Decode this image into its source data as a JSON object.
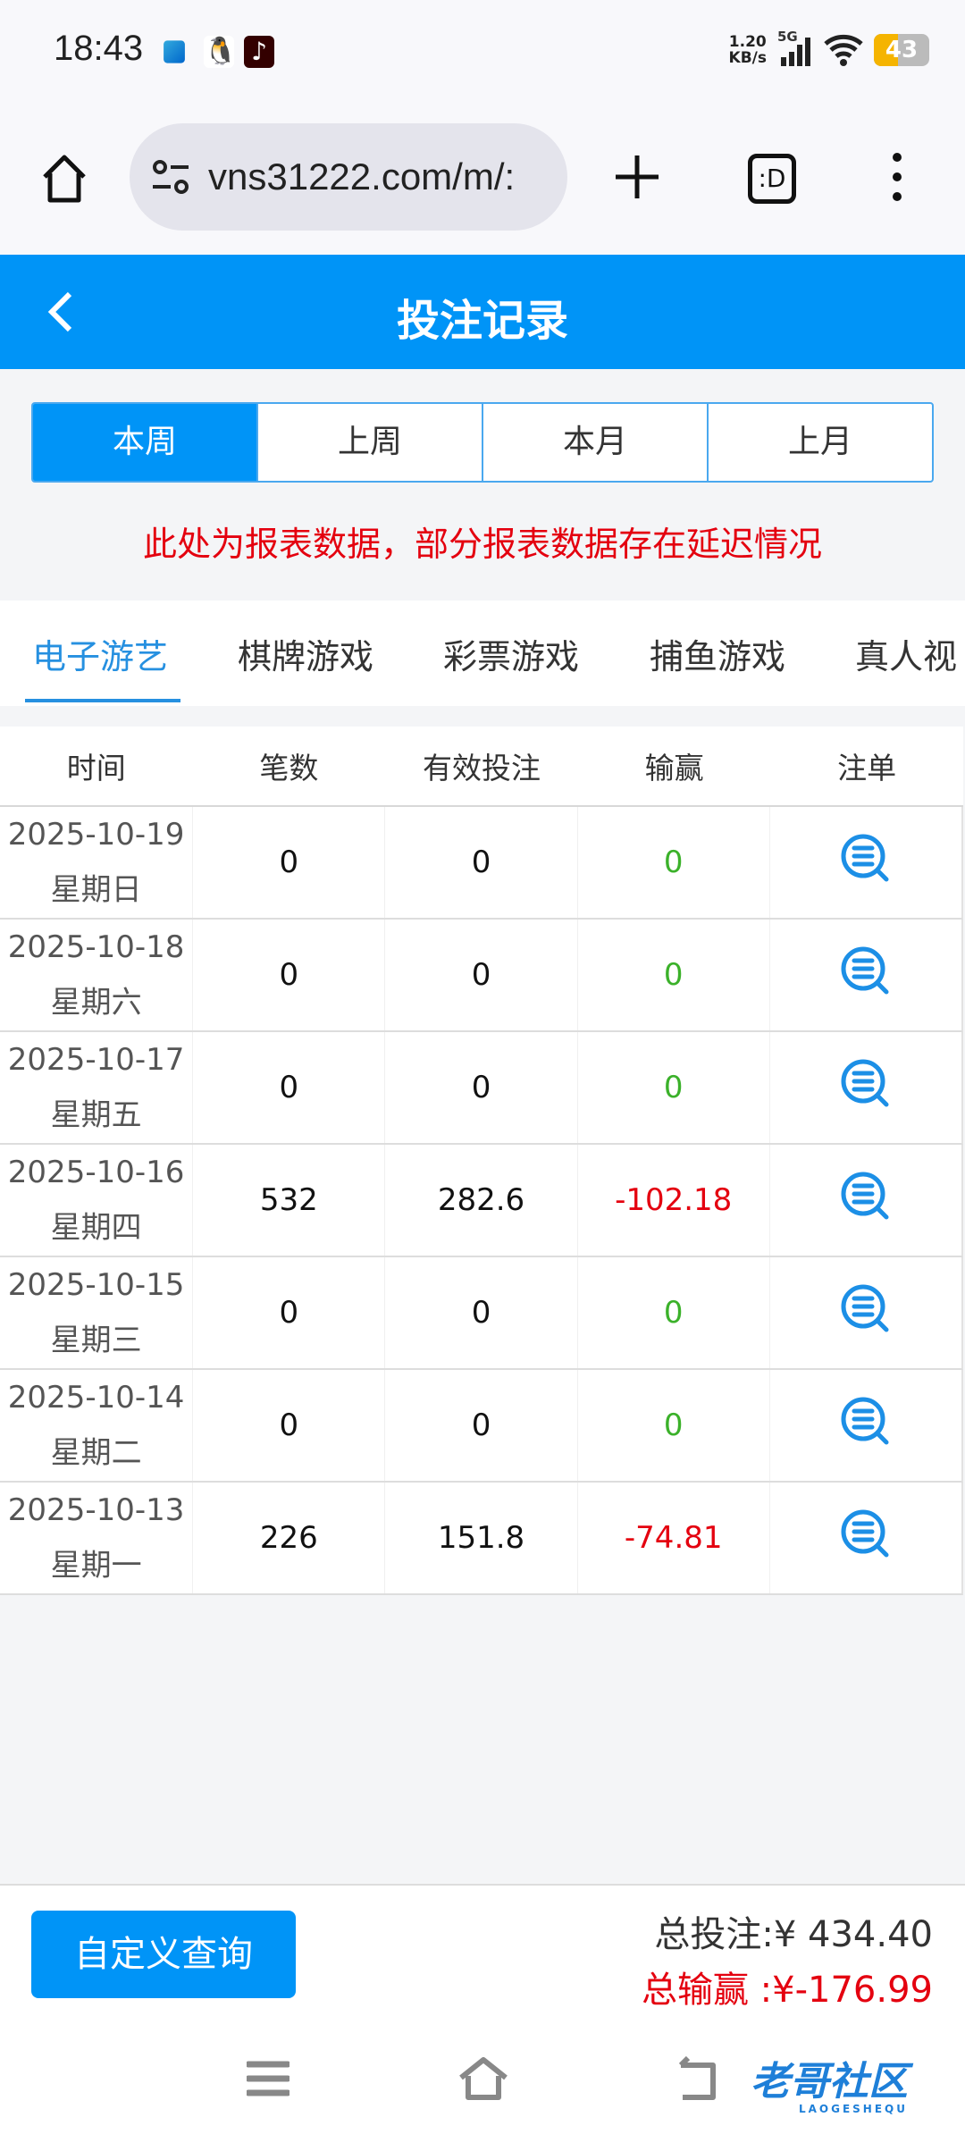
{
  "status_bar": {
    "time": "18:43",
    "net_speed": "1.20",
    "net_unit": "KB/s",
    "network": "5G",
    "battery": "43",
    "battery_level": 43
  },
  "browser": {
    "url": "vns31222.com/m/:",
    "tab_icon_label": ":D"
  },
  "header": {
    "title": "投注记录"
  },
  "periods": [
    {
      "label": "本周",
      "active": true
    },
    {
      "label": "上周"
    },
    {
      "label": "本月"
    },
    {
      "label": "上月"
    }
  ],
  "notice": "此处为报表数据，部分报表数据存在延迟情况",
  "categories": [
    {
      "label": "电子游艺",
      "active": true
    },
    {
      "label": "棋牌游戏"
    },
    {
      "label": "彩票游戏"
    },
    {
      "label": "捕鱼游戏"
    },
    {
      "label": "真人视"
    }
  ],
  "table": {
    "columns": [
      "时间",
      "笔数",
      "有效投注",
      "输赢",
      "注单"
    ],
    "rows": [
      {
        "date": "2025-10-19",
        "weekday": "星期日",
        "count": "0",
        "valid": "0",
        "win": "0",
        "sign": "zero"
      },
      {
        "date": "2025-10-18",
        "weekday": "星期六",
        "count": "0",
        "valid": "0",
        "win": "0",
        "sign": "zero"
      },
      {
        "date": "2025-10-17",
        "weekday": "星期五",
        "count": "0",
        "valid": "0",
        "win": "0",
        "sign": "zero"
      },
      {
        "date": "2025-10-16",
        "weekday": "星期四",
        "count": "532",
        "valid": "282.6",
        "win": "-102.18",
        "sign": "neg"
      },
      {
        "date": "2025-10-15",
        "weekday": "星期三",
        "count": "0",
        "valid": "0",
        "win": "0",
        "sign": "zero"
      },
      {
        "date": "2025-10-14",
        "weekday": "星期二",
        "count": "0",
        "valid": "0",
        "win": "0",
        "sign": "zero"
      },
      {
        "date": "2025-10-13",
        "weekday": "星期一",
        "count": "226",
        "valid": "151.8",
        "win": "-74.81",
        "sign": "neg"
      }
    ]
  },
  "footer": {
    "custom_query": "自定义查询",
    "total_bet": "总投注:¥ 434.40",
    "total_win": "总输赢 :¥-176.99"
  },
  "watermark": {
    "text": "老哥社区",
    "sub": "LAOGESHEQU"
  },
  "colors": {
    "accent": "#0094f7",
    "loss": "#e4000f",
    "zero": "#3bb12a"
  }
}
